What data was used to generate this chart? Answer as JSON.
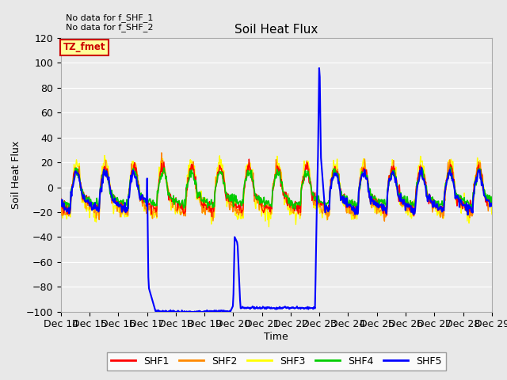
{
  "title": "Soil Heat Flux",
  "ylabel": "Soil Heat Flux",
  "xlabel": "Time",
  "ylim": [
    -100,
    120
  ],
  "annotations": [
    "No data for f_SHF_1",
    "No data for f_SHF_2"
  ],
  "box_label": "TZ_fmet",
  "box_color": "#ffff99",
  "box_border_color": "#cc0000",
  "box_text_color": "#cc0000",
  "legend_entries": [
    "SHF1",
    "SHF2",
    "SHF3",
    "SHF4",
    "SHF5"
  ],
  "legend_colors": [
    "#ff0000",
    "#ff8800",
    "#ffff00",
    "#00cc00",
    "#0000ff"
  ],
  "background_color": "#e8e8e8",
  "plot_bg_color": "#ebebeb",
  "x_tick_labels": [
    "Dec 14",
    "Dec 15",
    "Dec 16",
    "Dec 17",
    "Dec 18",
    "Dec 19",
    "Dec 20",
    "Dec 21",
    "Dec 22",
    "Dec 23",
    "Dec 24",
    "Dec 25",
    "Dec 26",
    "Dec 27",
    "Dec 28",
    "Dec 29"
  ],
  "x_tick_positions": [
    14,
    15,
    16,
    17,
    18,
    19,
    20,
    21,
    22,
    23,
    24,
    25,
    26,
    27,
    28,
    29
  ]
}
